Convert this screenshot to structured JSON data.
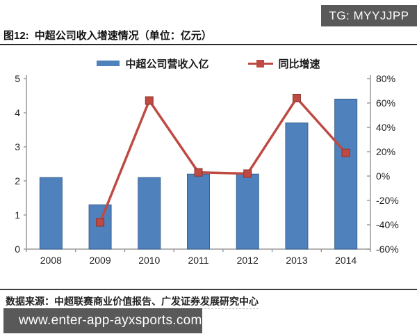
{
  "badge": {
    "text": "TG: MYYJJPP"
  },
  "title": {
    "label": "图12:",
    "text": "中超公司收入增速情况（单位：亿元）"
  },
  "legend": {
    "bar_label": "中超公司营收入亿",
    "line_label": "同比增速"
  },
  "colors": {
    "bar": "#4f81bd",
    "bar_border": "#38618f",
    "line": "#bf4a43",
    "marker_border": "#8e332e",
    "axis": "#9a9a9a",
    "tick_text": "#222222",
    "badge_bg": "#595959"
  },
  "chart_data": {
    "type": "bar",
    "subtype": "bar+line combo",
    "title": "中超公司收入增速情况（单位：亿元）",
    "categories": [
      "2008",
      "2009",
      "2010",
      "2011",
      "2012",
      "2013",
      "2014"
    ],
    "series": [
      {
        "name": "中超公司营收入亿",
        "type": "bar",
        "axis": "left",
        "values": [
          2.1,
          1.3,
          2.1,
          2.2,
          2.2,
          3.7,
          4.4
        ]
      },
      {
        "name": "同比增速",
        "type": "line",
        "axis": "right",
        "values": [
          null,
          -38,
          62,
          3,
          2,
          64,
          19
        ]
      }
    ],
    "left_axis": {
      "min": 0,
      "max": 5,
      "step": 1,
      "ticks": [
        "0",
        "1",
        "2",
        "3",
        "4",
        "5"
      ]
    },
    "right_axis": {
      "min": -60,
      "max": 80,
      "step": 20,
      "format": "percent",
      "ticks": [
        "-60%",
        "-40%",
        "-20%",
        "0%",
        "20%",
        "40%",
        "60%",
        "80%"
      ]
    },
    "legend_position": "top",
    "grid": false
  },
  "source": {
    "text": "数据来源：中超联赛商业价值报告、广发证券发展研究中心"
  },
  "footer": {
    "url": "www.enter-app-ayxsports.com"
  }
}
